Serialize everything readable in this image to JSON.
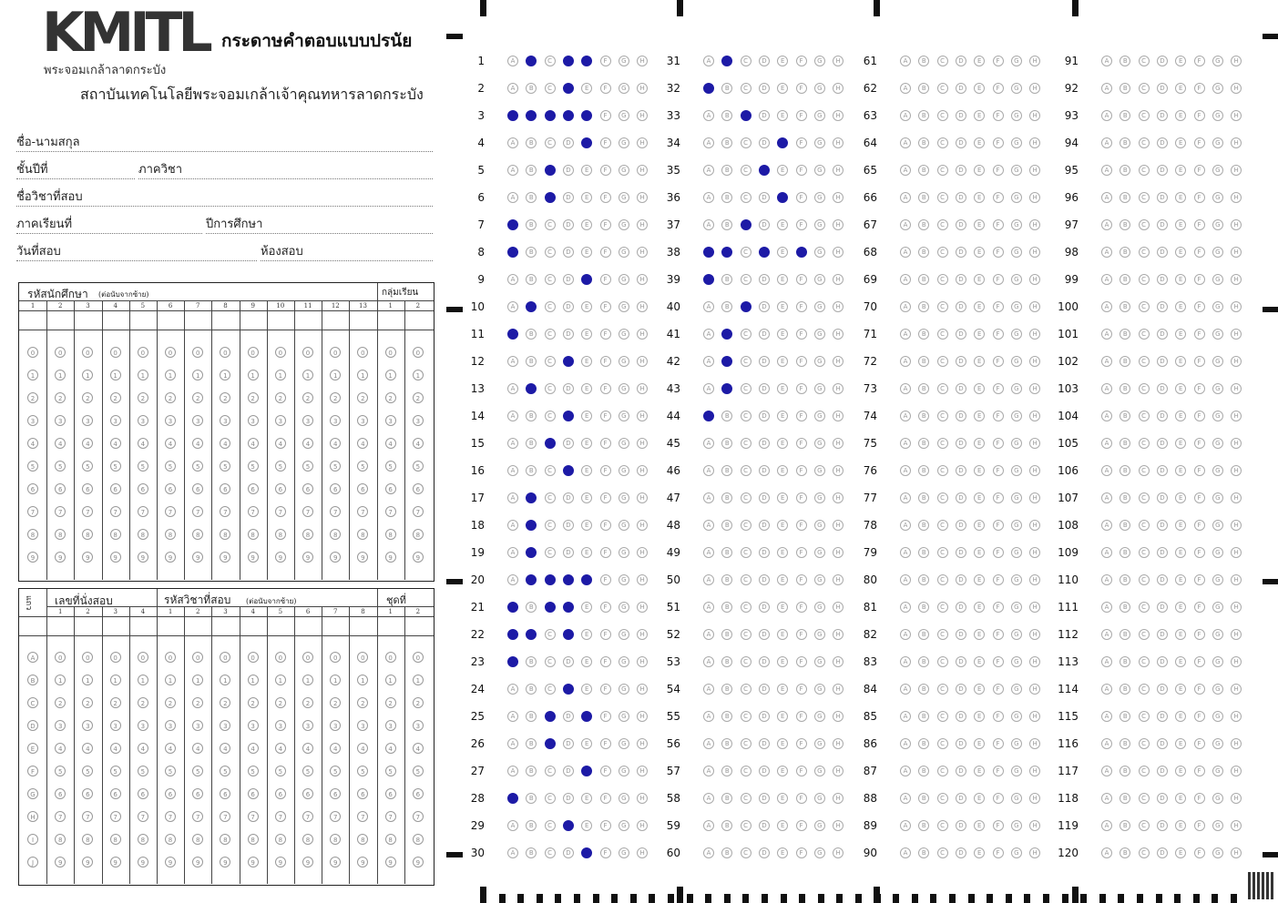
{
  "header": {
    "logo": "KMITL",
    "logo_subtitle": "พระจอมเกล้าลาดกระบัง",
    "form_title": "กระดาษคำตอบแบบปรนัย",
    "institute": "สถาบันเทคโนโลยีพระจอมเกล้าเจ้าคุณทหารลาดกระบัง"
  },
  "fields": {
    "name": "ชื่อ-นามสกุล",
    "year": "ชั้นปีที่",
    "department": "ภาควิชา",
    "course_name": "ชื่อวิชาที่สอบ",
    "semester": "ภาคเรียนที่",
    "academic_year": "ปีการศึกษา",
    "exam_date": "วันที่สอบ",
    "room": "ห้องสอบ"
  },
  "student_id_grid": {
    "title": "รหัสนักศึกษา",
    "note": "(ต่อนับจากซ้าย)",
    "group_label": "กลุ่มเรียน",
    "id_columns": [
      "1",
      "2",
      "3",
      "4",
      "5",
      "6",
      "7",
      "8",
      "9",
      "10",
      "11",
      "12",
      "13"
    ],
    "group_columns": [
      "1",
      "2"
    ],
    "digits": [
      "0",
      "1",
      "2",
      "3",
      "4",
      "5",
      "6",
      "7",
      "8",
      "9"
    ]
  },
  "seat_grid": {
    "side_label": "แถว",
    "seat_title": "เลขที่นั่งสอบ",
    "course_title": "รหัสวิชาที่สอบ",
    "note": "(ต่อนับจากซ้าย)",
    "set_label": "ชุดที่",
    "seat_columns": [
      "1",
      "2",
      "3",
      "4"
    ],
    "course_columns": [
      "1",
      "2",
      "3",
      "4",
      "5",
      "6",
      "7",
      "8"
    ],
    "set_columns": [
      "1",
      "2"
    ],
    "row_letters": [
      "A",
      "B",
      "C",
      "D",
      "E",
      "F",
      "G",
      "H",
      "I",
      "J"
    ],
    "digits": [
      "0",
      "1",
      "2",
      "3",
      "4",
      "5",
      "6",
      "7",
      "8",
      "9"
    ]
  },
  "answers": {
    "choices": [
      "A",
      "B",
      "C",
      "D",
      "E",
      "F",
      "G",
      "H"
    ],
    "fill_color": "#1d1aa6",
    "filled": {
      "1": [
        "B",
        "D",
        "E"
      ],
      "2": [
        "D"
      ],
      "3": [
        "A",
        "B",
        "C",
        "D",
        "E"
      ],
      "4": [
        "E"
      ],
      "5": [
        "C"
      ],
      "6": [
        "C"
      ],
      "7": [
        "A"
      ],
      "8": [
        "A"
      ],
      "9": [
        "E"
      ],
      "10": [
        "B"
      ],
      "11": [
        "A"
      ],
      "12": [
        "D"
      ],
      "13": [
        "B"
      ],
      "14": [
        "D"
      ],
      "15": [
        "C"
      ],
      "16": [
        "D"
      ],
      "17": [
        "B"
      ],
      "18": [
        "B"
      ],
      "19": [
        "B"
      ],
      "20": [
        "B",
        "C",
        "D",
        "E"
      ],
      "21": [
        "A",
        "C",
        "D"
      ],
      "22": [
        "A",
        "B",
        "D"
      ],
      "23": [
        "A"
      ],
      "24": [
        "D"
      ],
      "25": [
        "C",
        "E"
      ],
      "26": [
        "C"
      ],
      "27": [
        "E"
      ],
      "28": [
        "A"
      ],
      "29": [
        "D"
      ],
      "30": [
        "E"
      ],
      "31": [
        "B"
      ],
      "32": [
        "A"
      ],
      "33": [
        "C"
      ],
      "34": [
        "E"
      ],
      "35": [
        "D"
      ],
      "36": [
        "E"
      ],
      "37": [
        "C"
      ],
      "38": [
        "A",
        "B",
        "D",
        "F"
      ],
      "39": [
        "A"
      ],
      "40": [
        "C"
      ],
      "41": [
        "B"
      ],
      "42": [
        "B"
      ],
      "43": [
        "B"
      ],
      "44": [
        "A"
      ]
    }
  }
}
